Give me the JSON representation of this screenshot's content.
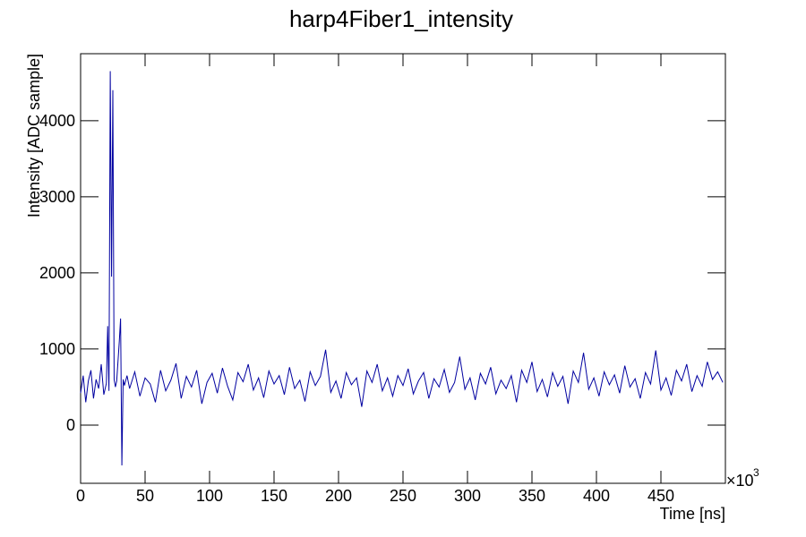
{
  "chart_data": {
    "type": "line",
    "title": "harp4Fiber1_intensity",
    "x_label": "Time [ns]",
    "y_label": "Intensity [ADC sample]",
    "x_multiplier": "×10",
    "x_multiplier_exponent": "3",
    "xlim": [
      0,
      500
    ],
    "xticks": [
      0,
      50,
      100,
      150,
      200,
      250,
      300,
      350,
      400,
      450
    ],
    "ylim": [
      -765,
      4880
    ],
    "yticks": [
      0,
      1000,
      2000,
      3000,
      4000
    ],
    "grid": false,
    "series": [
      {
        "color": "#0000a0",
        "x": [
          0,
          2,
          4,
          6,
          8,
          10,
          12,
          14,
          16,
          18,
          20,
          21,
          22,
          23,
          24,
          25,
          26,
          27,
          28,
          30,
          31,
          32,
          33,
          34,
          36,
          38,
          42,
          46,
          50,
          54,
          58,
          62,
          66,
          70,
          74,
          78,
          82,
          86,
          90,
          94,
          98,
          102,
          106,
          110,
          114,
          118,
          122,
          126,
          130,
          134,
          138,
          142,
          146,
          150,
          154,
          158,
          162,
          166,
          170,
          174,
          178,
          182,
          186,
          190,
          194,
          198,
          202,
          206,
          210,
          214,
          218,
          222,
          226,
          230,
          234,
          238,
          242,
          246,
          250,
          254,
          258,
          262,
          266,
          270,
          274,
          278,
          282,
          286,
          290,
          294,
          298,
          302,
          306,
          310,
          314,
          318,
          322,
          326,
          330,
          334,
          338,
          342,
          346,
          350,
          354,
          358,
          362,
          366,
          370,
          374,
          378,
          382,
          386,
          390,
          394,
          398,
          402,
          406,
          410,
          414,
          418,
          422,
          426,
          430,
          434,
          438,
          442,
          446,
          450,
          454,
          458,
          462,
          466,
          470,
          474,
          478,
          482,
          486,
          490,
          494,
          498
        ],
        "values": [
          420,
          650,
          300,
          580,
          720,
          350,
          600,
          480,
          800,
          400,
          550,
          1300,
          450,
          4650,
          1950,
          4400,
          600,
          500,
          580,
          1100,
          1400,
          -530,
          600,
          520,
          650,
          480,
          700,
          380,
          620,
          540,
          300,
          720,
          450,
          590,
          810,
          350,
          640,
          500,
          720,
          280,
          560,
          680,
          420,
          750,
          510,
          330,
          690,
          570,
          800,
          460,
          620,
          360,
          710,
          540,
          650,
          400,
          760,
          480,
          590,
          310,
          700,
          520,
          640,
          990,
          430,
          580,
          350,
          690,
          530,
          620,
          240,
          710,
          560,
          800,
          450,
          620,
          380,
          650,
          520,
          740,
          410,
          580,
          690,
          350,
          610,
          500,
          730,
          430,
          560,
          900,
          470,
          620,
          330,
          680,
          540,
          760,
          410,
          590,
          480,
          650,
          300,
          720,
          560,
          830,
          440,
          600,
          370,
          690,
          510,
          640,
          280,
          710,
          560,
          950,
          470,
          620,
          380,
          700,
          530,
          660,
          420,
          780,
          500,
          610,
          350,
          690,
          540,
          980,
          460,
          620,
          390,
          720,
          580,
          800,
          440,
          650,
          510,
          830,
          600,
          700,
          560
        ]
      }
    ]
  }
}
